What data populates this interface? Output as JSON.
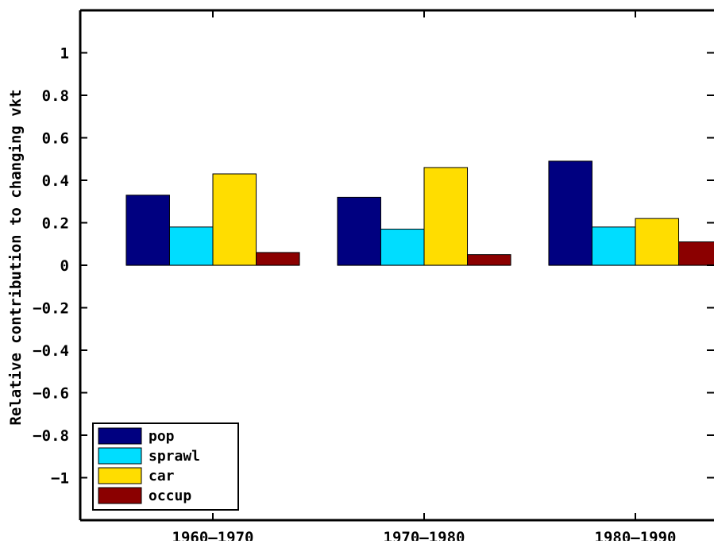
{
  "chart_data": {
    "type": "bar",
    "title": "",
    "xlabel": "",
    "ylabel": "Relative contribution to changing vkt",
    "ylim": [
      -1.2,
      1.2
    ],
    "yticks": [
      -1,
      -0.8,
      -0.6,
      -0.4,
      -0.2,
      0,
      0.2,
      0.4,
      0.6,
      0.8,
      1
    ],
    "ytick_labels": [
      "−1",
      "−0.8",
      "−0.6",
      "−0.4",
      "−0.2",
      "0",
      "0.2",
      "0.4",
      "0.6",
      "0.8",
      "1"
    ],
    "categories": [
      "1960–1970",
      "1970–1980",
      "1980–1990"
    ],
    "series": [
      {
        "name": "pop",
        "color": "#000080",
        "values": [
          0.33,
          0.32,
          0.49
        ]
      },
      {
        "name": "sprawl",
        "color": "#00DDFF",
        "values": [
          0.18,
          0.17,
          0.18
        ]
      },
      {
        "name": "car",
        "color": "#FFDD00",
        "values": [
          0.43,
          0.46,
          0.22
        ]
      },
      {
        "name": "occup",
        "color": "#8B0000",
        "values": [
          0.06,
          0.05,
          0.11
        ]
      }
    ],
    "grid": false,
    "legend_position": "bottom-left"
  }
}
